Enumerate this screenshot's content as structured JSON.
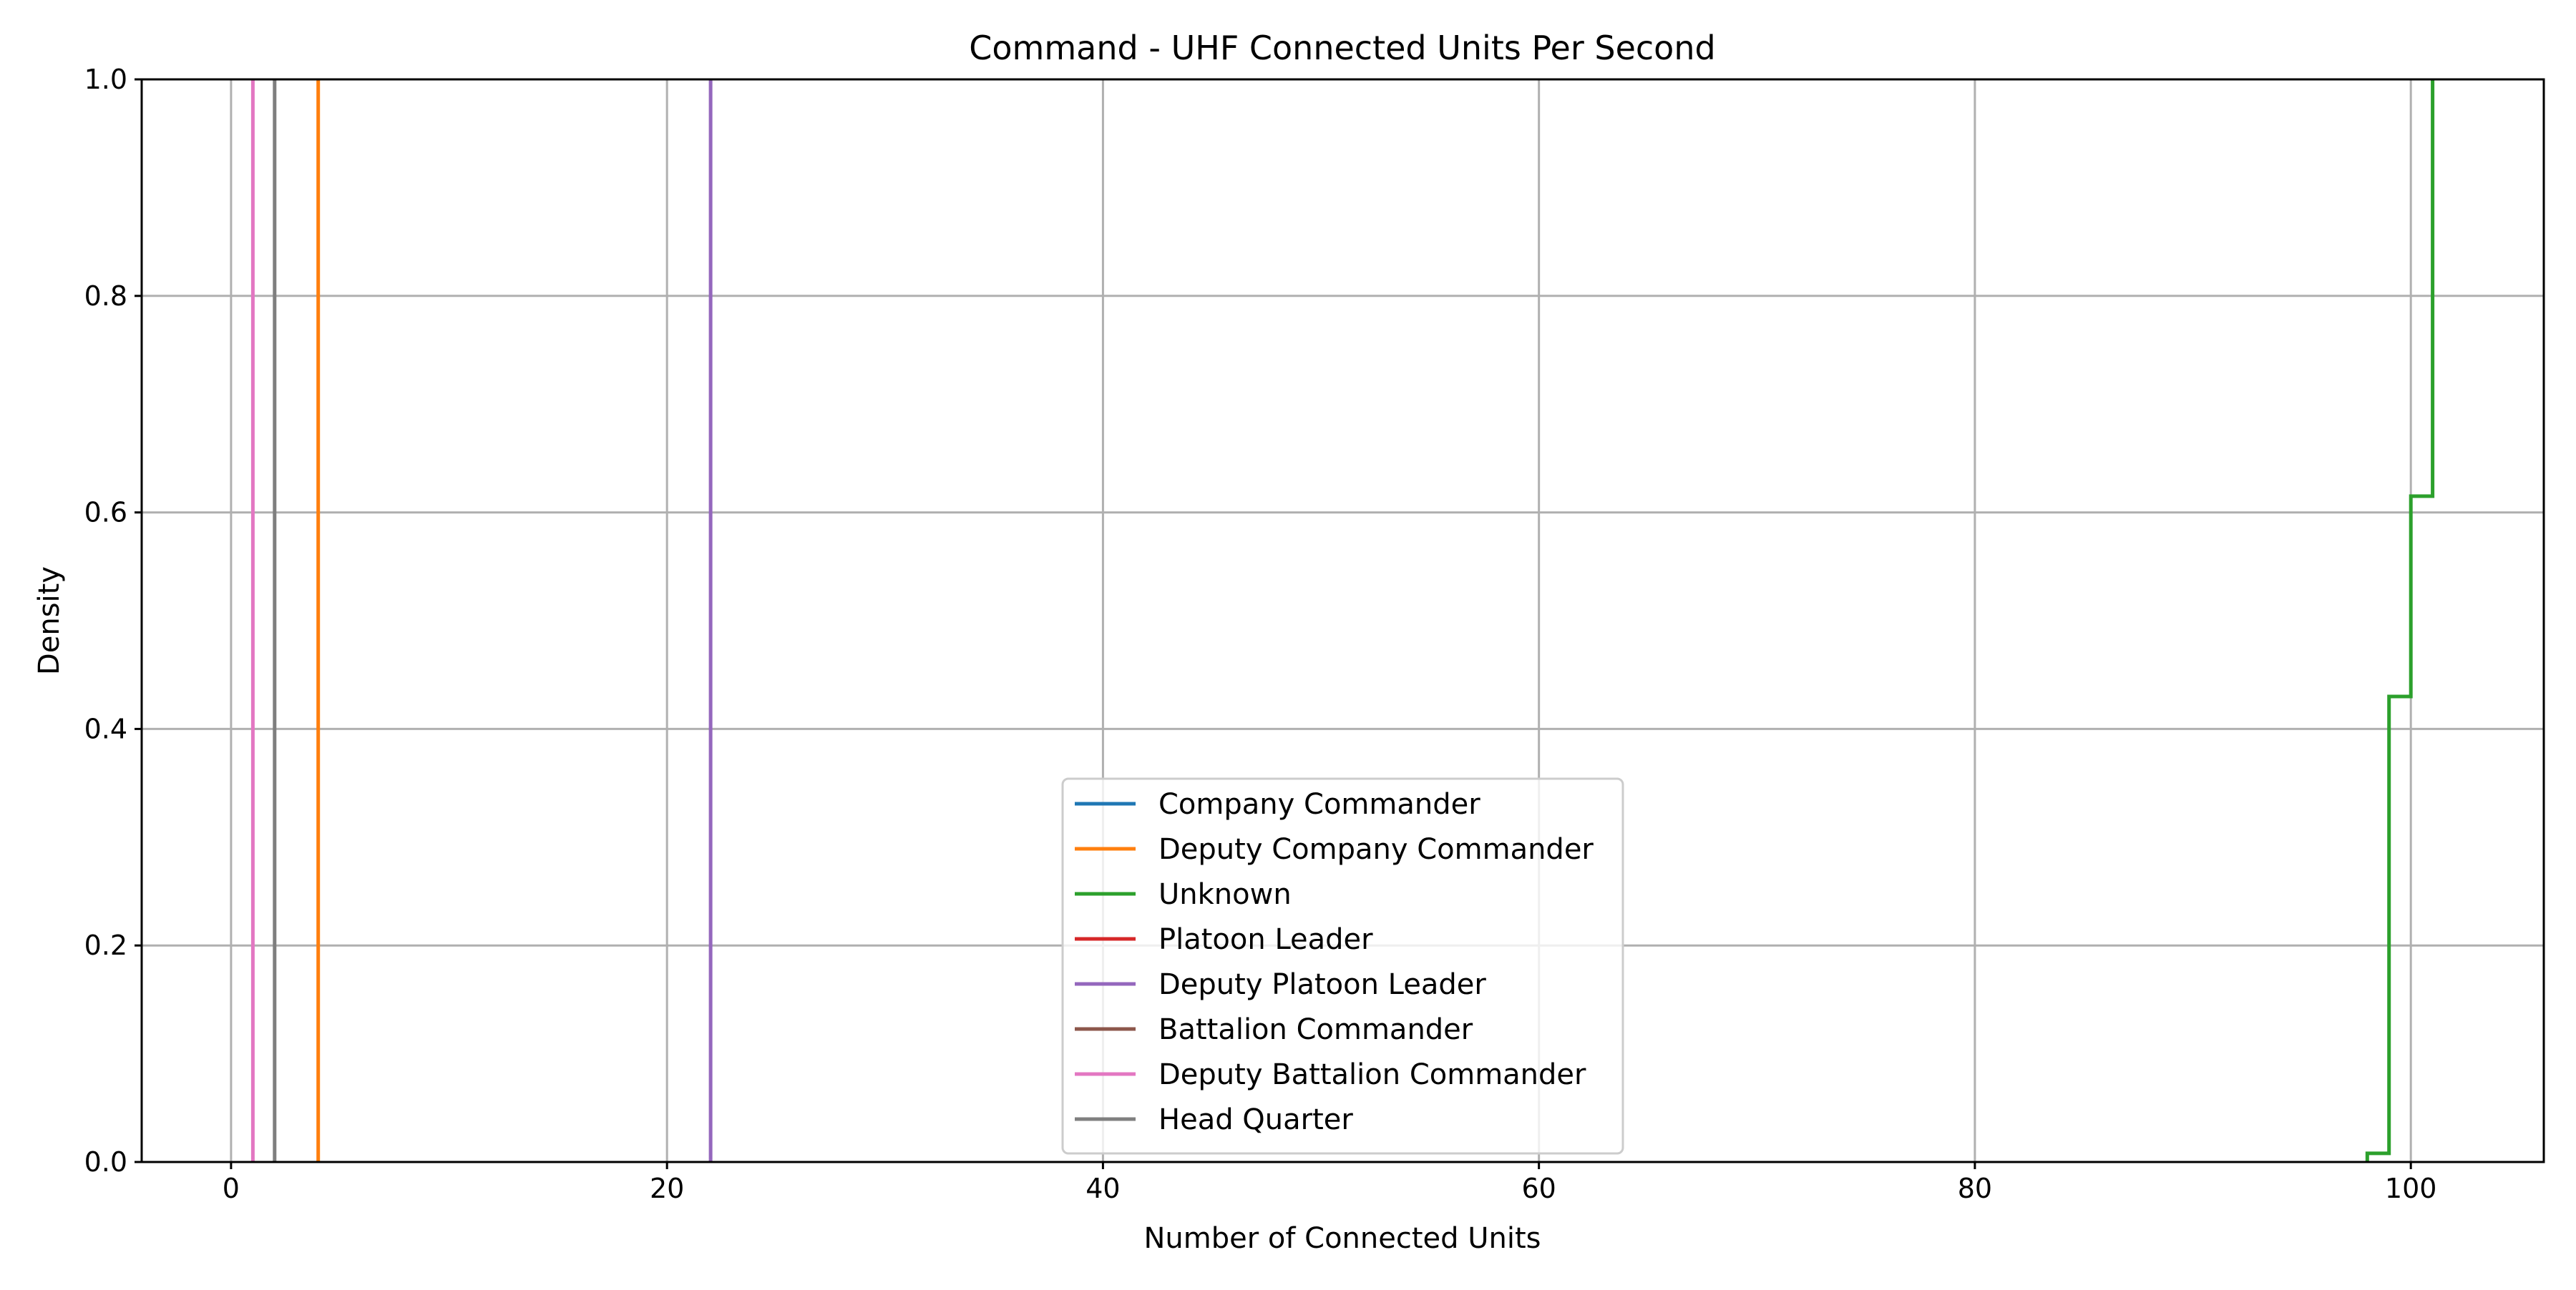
{
  "chart_data": {
    "type": "line",
    "title": "Command - UHF Connected Units Per Second",
    "xlabel": "Number of Connected Units",
    "ylabel": "Density",
    "xlim": [
      -4.1,
      106.1
    ],
    "ylim": [
      0.0,
      1.0
    ],
    "grid": true,
    "legend_position": "lower-center",
    "x_ticks": [
      0,
      20,
      40,
      60,
      80,
      100
    ],
    "x_tick_labels": [
      "0",
      "20",
      "40",
      "60",
      "80",
      "100"
    ],
    "y_ticks": [
      0.0,
      0.2,
      0.4,
      0.6,
      0.8,
      1.0
    ],
    "y_tick_labels": [
      "0.0",
      "0.2",
      "0.4",
      "0.6",
      "0.8",
      "1.0"
    ],
    "series": [
      {
        "name": "Company Commander",
        "color": "#1f77b4",
        "points": []
      },
      {
        "name": "Deputy Company Commander",
        "color": "#ff7f0e",
        "points": [
          [
            4,
            0.0
          ],
          [
            4,
            1.0
          ]
        ]
      },
      {
        "name": "Unknown",
        "color": "#2ca02c",
        "points": [
          [
            98,
            0.0
          ],
          [
            98,
            0.008
          ],
          [
            99,
            0.008
          ],
          [
            99,
            0.43
          ],
          [
            100,
            0.43
          ],
          [
            100,
            0.615
          ],
          [
            101,
            0.615
          ],
          [
            101,
            1.0
          ]
        ]
      },
      {
        "name": "Platoon Leader",
        "color": "#d62728",
        "points": []
      },
      {
        "name": "Deputy Platoon Leader",
        "color": "#9467bd",
        "points": [
          [
            22,
            0.0
          ],
          [
            22,
            1.0
          ]
        ]
      },
      {
        "name": "Battalion Commander",
        "color": "#8c564b",
        "points": []
      },
      {
        "name": "Deputy Battalion Commander",
        "color": "#e377c2",
        "points": [
          [
            1,
            0.0
          ],
          [
            1,
            1.0
          ]
        ]
      },
      {
        "name": "Head Quarter",
        "color": "#7f7f7f",
        "points": [
          [
            2,
            0.0
          ],
          [
            2,
            1.0
          ]
        ]
      }
    ]
  }
}
